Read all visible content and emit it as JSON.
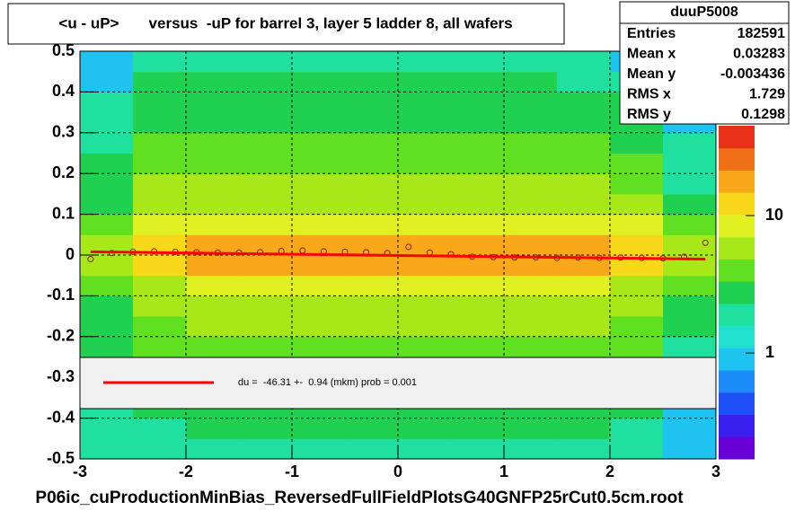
{
  "chart_data": {
    "type": "heatmap",
    "title": "<u - uP>       versus  -uP for barrel 3, layer 5 ladder 8, all wafers",
    "footer": "P06ic_cuProductionMinBias_ReversedFullFieldPlotsG40GNFP25rCut0.5cm.root",
    "xlim": [
      -3,
      3
    ],
    "ylim": [
      -0.5,
      0.5
    ],
    "xticks": [
      -3,
      -2,
      -1,
      0,
      1,
      2,
      3
    ],
    "yticks": [
      -0.5,
      -0.4,
      -0.3,
      -0.2,
      -0.1,
      0,
      0.1,
      0.2,
      0.3,
      0.4,
      0.5
    ],
    "grid": true,
    "zlim": [
      0.17,
      45
    ],
    "zticks": [
      1,
      10
    ],
    "log_z": true,
    "palette": [
      "#6a00d8",
      "#3a1ff0",
      "#1f4ff8",
      "#1c8af8",
      "#1fc3f0",
      "#22e0d0",
      "#20e0a0",
      "#20d050",
      "#60e020",
      "#a8e818",
      "#e0f020",
      "#f8d818",
      "#f8a818",
      "#f07018",
      "#e83018"
    ],
    "xbins": [
      -3,
      -2.5,
      -2,
      -1.5,
      -1,
      -0.5,
      0,
      0.5,
      1,
      1.5,
      2,
      2.5,
      3
    ],
    "ybins": [
      -0.5,
      -0.45,
      -0.4,
      -0.35,
      -0.3,
      -0.25,
      -0.2,
      -0.15,
      -0.1,
      -0.05,
      0,
      0.05,
      0.1,
      0.15,
      0.2,
      0.25,
      0.3,
      0.35,
      0.4,
      0.45,
      0.5
    ],
    "z": [
      [
        2,
        2,
        2,
        2,
        2,
        2,
        2,
        2,
        2,
        2,
        2,
        1
      ],
      [
        2,
        2,
        3,
        3,
        3,
        3,
        3,
        3,
        3,
        3,
        2,
        1
      ],
      [
        2,
        3,
        3,
        3,
        3,
        3,
        3,
        3,
        3,
        3,
        3,
        1
      ],
      [
        2,
        3,
        3,
        3,
        3,
        3,
        3,
        3,
        3,
        3,
        3,
        2
      ],
      [
        2,
        3,
        4,
        4,
        4,
        4,
        4,
        4,
        4,
        4,
        3,
        2
      ],
      [
        3,
        4,
        4,
        4,
        4,
        4,
        4,
        4,
        4,
        4,
        4,
        2
      ],
      [
        3,
        4,
        5,
        5,
        5,
        5,
        5,
        5,
        5,
        5,
        4,
        3
      ],
      [
        3,
        5,
        6,
        6,
        6,
        6,
        6,
        6,
        6,
        6,
        5,
        3
      ],
      [
        4,
        7,
        8,
        8,
        8,
        8,
        8,
        8,
        8,
        8,
        7,
        4
      ],
      [
        6,
        12,
        16,
        17,
        17,
        17,
        16,
        16,
        16,
        16,
        12,
        6
      ],
      [
        6,
        12,
        17,
        18,
        18,
        18,
        17,
        17,
        17,
        17,
        13,
        6
      ],
      [
        4,
        8,
        10,
        10,
        10,
        10,
        9,
        9,
        9,
        9,
        8,
        4
      ],
      [
        3,
        6,
        7,
        7,
        7,
        7,
        6,
        6,
        6,
        6,
        5,
        3
      ],
      [
        3,
        5,
        5,
        5,
        5,
        5,
        5,
        5,
        5,
        5,
        4,
        2
      ],
      [
        3,
        4,
        4,
        4,
        4,
        4,
        4,
        4,
        4,
        4,
        4,
        2
      ],
      [
        2,
        4,
        4,
        4,
        4,
        4,
        4,
        4,
        4,
        4,
        3,
        2
      ],
      [
        2,
        3,
        3,
        3,
        3,
        3,
        3,
        3,
        3,
        3,
        3,
        1
      ],
      [
        2,
        3,
        3,
        3,
        3,
        3,
        3,
        3,
        3,
        3,
        3,
        1
      ],
      [
        1,
        3,
        3,
        3,
        3,
        3,
        3,
        3,
        3,
        2,
        2,
        1
      ],
      [
        1,
        2,
        2,
        2,
        2,
        2,
        2,
        2,
        2,
        2,
        1,
        1
      ]
    ],
    "profile": {
      "color": "#8b1a1a",
      "x": [
        -2.9,
        -2.7,
        -2.5,
        -2.3,
        -2.1,
        -1.9,
        -1.7,
        -1.5,
        -1.3,
        -1.1,
        -0.9,
        -0.7,
        -0.5,
        -0.3,
        -0.1,
        0.1,
        0.3,
        0.5,
        0.7,
        0.9,
        1.1,
        1.3,
        1.5,
        1.7,
        1.9,
        2.1,
        2.3,
        2.5,
        2.7,
        2.9
      ],
      "values": [
        -0.01,
        0.005,
        0.008,
        0.009,
        0.008,
        0.007,
        0.006,
        0.006,
        0.007,
        0.01,
        0.011,
        0.009,
        0.008,
        0.007,
        0.005,
        0.02,
        0.006,
        0.002,
        -0.004,
        -0.005,
        -0.006,
        -0.006,
        -0.007,
        -0.006,
        -0.007,
        -0.006,
        -0.007,
        -0.008,
        -0.004,
        0.03
      ]
    },
    "fit": {
      "color": "#ff0000",
      "x": [
        -2.9,
        2.9
      ],
      "values": [
        0.008,
        -0.01
      ],
      "label": "du =  -46.31 +-  0.94 (mkm) prob = 0.001"
    },
    "stats": {
      "title": "duuP5008",
      "rows": [
        [
          "Entries",
          "182591"
        ],
        [
          "Mean x",
          "0.03283"
        ],
        [
          "Mean y",
          "-0.003436"
        ],
        [
          "RMS x",
          "1.729"
        ],
        [
          "RMS y",
          "0.1298"
        ]
      ]
    }
  }
}
